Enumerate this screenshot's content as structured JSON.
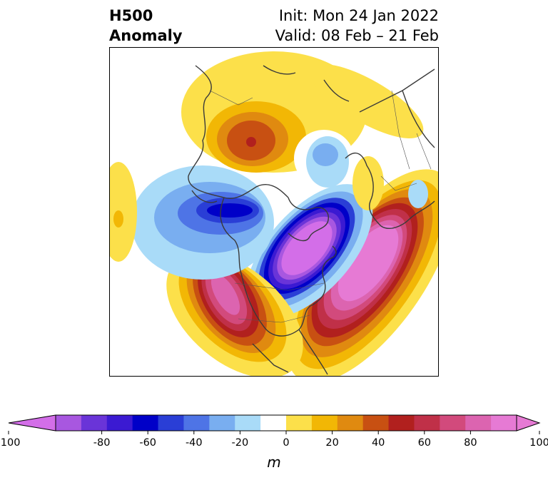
{
  "header": {
    "title_line1": "H500",
    "title_line2": "Anomaly",
    "init_text": "Init: Mon 24 Jan 2022",
    "valid_text": "Valid: 08 Feb – 21 Feb"
  },
  "map": {
    "projection": "north-polar-stereographic",
    "variable": "500 hPa geopotential height anomaly",
    "features": [
      {
        "name": "positive-anomaly-north-atlantic",
        "sign": "positive",
        "peak": 100
      },
      {
        "name": "negative-anomaly-hudson-bay",
        "sign": "negative",
        "peak": -100
      },
      {
        "name": "positive-anomaly-western-north-america",
        "sign": "positive",
        "peak": 80
      },
      {
        "name": "negative-anomaly-north-pacific",
        "sign": "negative",
        "peak": -60
      },
      {
        "name": "positive-anomaly-siberia",
        "sign": "positive",
        "peak": 60
      },
      {
        "name": "negative-anomaly-arctic",
        "sign": "negative",
        "peak": -20
      },
      {
        "name": "positive-anomaly-europe",
        "sign": "positive",
        "peak": 20
      },
      {
        "name": "positive-anomaly-pacific-edge",
        "sign": "positive",
        "peak": 30
      }
    ]
  },
  "colorbar": {
    "unit": "m",
    "ticks": [
      "-100",
      "-80",
      "-60",
      "-40",
      "-20",
      "0",
      "20",
      "40",
      "60",
      "80",
      "100"
    ],
    "levels": [
      -100,
      -90,
      -80,
      -70,
      -60,
      -50,
      -40,
      -30,
      -20,
      -10,
      10,
      20,
      30,
      40,
      50,
      60,
      70,
      80,
      90,
      100
    ],
    "colors": [
      "#a857e0",
      "#6a34d8",
      "#3b1ad2",
      "#0000c8",
      "#2a3ed6",
      "#4e74e6",
      "#79aef0",
      "#a9dbf8",
      "#ffffff",
      "#fce04a",
      "#f2b705",
      "#e08a10",
      "#c85012",
      "#b1201e",
      "#c03048",
      "#d24a7c",
      "#dc64b0",
      "#e67ad4"
    ],
    "extend_low_color": "#d36ee8",
    "extend_high_color": "#e67ad4"
  }
}
